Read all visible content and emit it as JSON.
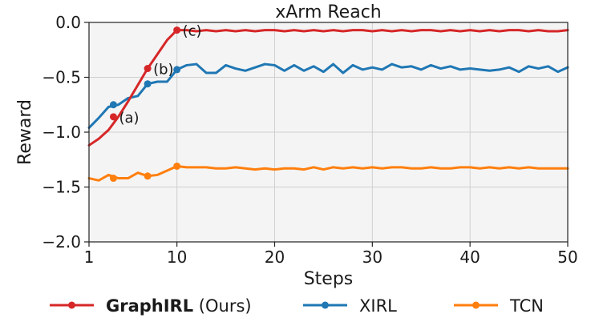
{
  "chart_data": {
    "type": "line",
    "title": "xArm Reach",
    "xlabel": "Steps",
    "ylabel": "Reward",
    "xlim": [
      1,
      50
    ],
    "ylim": [
      -2.0,
      0.0
    ],
    "xticks": [
      1,
      10,
      20,
      30,
      40,
      50
    ],
    "xtick_labels": [
      "1",
      "10",
      "20",
      "30",
      "40",
      "50"
    ],
    "yticks": [
      0.0,
      -0.5,
      -1.0,
      -1.5,
      -2.0
    ],
    "ytick_labels": [
      "0.0",
      "−0.5",
      "−1.0",
      "−1.5",
      "−2.0"
    ],
    "grid": true,
    "legend_position": "bottom",
    "series": [
      {
        "name": "GraphIRL",
        "name_suffix": " (Ours)",
        "color": "#d62728",
        "x": [
          1,
          2,
          3,
          4,
          5,
          6,
          7,
          8,
          9,
          10,
          11,
          12,
          13,
          14,
          15,
          16,
          17,
          18,
          19,
          20,
          21,
          22,
          23,
          24,
          25,
          26,
          27,
          28,
          29,
          30,
          31,
          32,
          33,
          34,
          35,
          36,
          37,
          38,
          39,
          40,
          41,
          42,
          43,
          44,
          45,
          46,
          47,
          48,
          49,
          50
        ],
        "values": [
          -1.12,
          -1.06,
          -0.98,
          -0.86,
          -0.72,
          -0.57,
          -0.42,
          -0.29,
          -0.16,
          -0.07,
          -0.07,
          -0.08,
          -0.07,
          -0.08,
          -0.07,
          -0.08,
          -0.07,
          -0.08,
          -0.07,
          -0.07,
          -0.08,
          -0.07,
          -0.08,
          -0.07,
          -0.08,
          -0.07,
          -0.08,
          -0.07,
          -0.07,
          -0.08,
          -0.07,
          -0.08,
          -0.07,
          -0.08,
          -0.07,
          -0.07,
          -0.08,
          -0.07,
          -0.08,
          -0.07,
          -0.08,
          -0.07,
          -0.08,
          -0.07,
          -0.07,
          -0.08,
          -0.07,
          -0.08,
          -0.08,
          -0.07
        ],
        "markers": [
          {
            "x": 3.5,
            "y": -0.86,
            "label": "(a)"
          },
          {
            "x": 7,
            "y": -0.42,
            "label": "(b)"
          },
          {
            "x": 10,
            "y": -0.07,
            "label": "(c)"
          }
        ]
      },
      {
        "name": "XIRL",
        "color": "#1f77b4",
        "x": [
          1,
          2,
          3,
          4,
          5,
          6,
          7,
          8,
          9,
          10,
          11,
          12,
          13,
          14,
          15,
          16,
          17,
          18,
          19,
          20,
          21,
          22,
          23,
          24,
          25,
          26,
          27,
          28,
          29,
          30,
          31,
          32,
          33,
          34,
          35,
          36,
          37,
          38,
          39,
          40,
          41,
          42,
          43,
          44,
          45,
          46,
          47,
          48,
          49,
          50
        ],
        "values": [
          -0.96,
          -0.87,
          -0.77,
          -0.75,
          -0.69,
          -0.67,
          -0.56,
          -0.54,
          -0.54,
          -0.43,
          -0.39,
          -0.38,
          -0.46,
          -0.46,
          -0.39,
          -0.42,
          -0.44,
          -0.41,
          -0.38,
          -0.39,
          -0.44,
          -0.39,
          -0.44,
          -0.4,
          -0.45,
          -0.38,
          -0.46,
          -0.39,
          -0.43,
          -0.41,
          -0.43,
          -0.38,
          -0.41,
          -0.4,
          -0.43,
          -0.39,
          -0.42,
          -0.4,
          -0.43,
          -0.42,
          -0.43,
          -0.44,
          -0.43,
          -0.41,
          -0.45,
          -0.4,
          -0.42,
          -0.4,
          -0.45,
          -0.41
        ],
        "markers": [
          {
            "x": 3.5,
            "y": -0.75
          },
          {
            "x": 7,
            "y": -0.56
          },
          {
            "x": 10,
            "y": -0.43
          }
        ]
      },
      {
        "name": "TCN",
        "color": "#ff7f0e",
        "x": [
          1,
          2,
          3,
          4,
          5,
          6,
          7,
          8,
          9,
          10,
          11,
          12,
          13,
          14,
          15,
          16,
          17,
          18,
          19,
          20,
          21,
          22,
          23,
          24,
          25,
          26,
          27,
          28,
          29,
          30,
          31,
          32,
          33,
          34,
          35,
          36,
          37,
          38,
          39,
          40,
          41,
          42,
          43,
          44,
          45,
          46,
          47,
          48,
          49,
          50
        ],
        "values": [
          -1.42,
          -1.44,
          -1.39,
          -1.42,
          -1.42,
          -1.37,
          -1.4,
          -1.39,
          -1.35,
          -1.31,
          -1.32,
          -1.32,
          -1.32,
          -1.33,
          -1.33,
          -1.32,
          -1.33,
          -1.34,
          -1.33,
          -1.34,
          -1.33,
          -1.33,
          -1.34,
          -1.32,
          -1.34,
          -1.32,
          -1.33,
          -1.32,
          -1.33,
          -1.32,
          -1.33,
          -1.32,
          -1.32,
          -1.33,
          -1.33,
          -1.32,
          -1.33,
          -1.33,
          -1.32,
          -1.32,
          -1.33,
          -1.32,
          -1.33,
          -1.32,
          -1.33,
          -1.32,
          -1.33,
          -1.33,
          -1.33,
          -1.33
        ],
        "markers": [
          {
            "x": 3.5,
            "y": -1.42
          },
          {
            "x": 7,
            "y": -1.4
          },
          {
            "x": 10,
            "y": -1.31
          }
        ]
      }
    ]
  }
}
